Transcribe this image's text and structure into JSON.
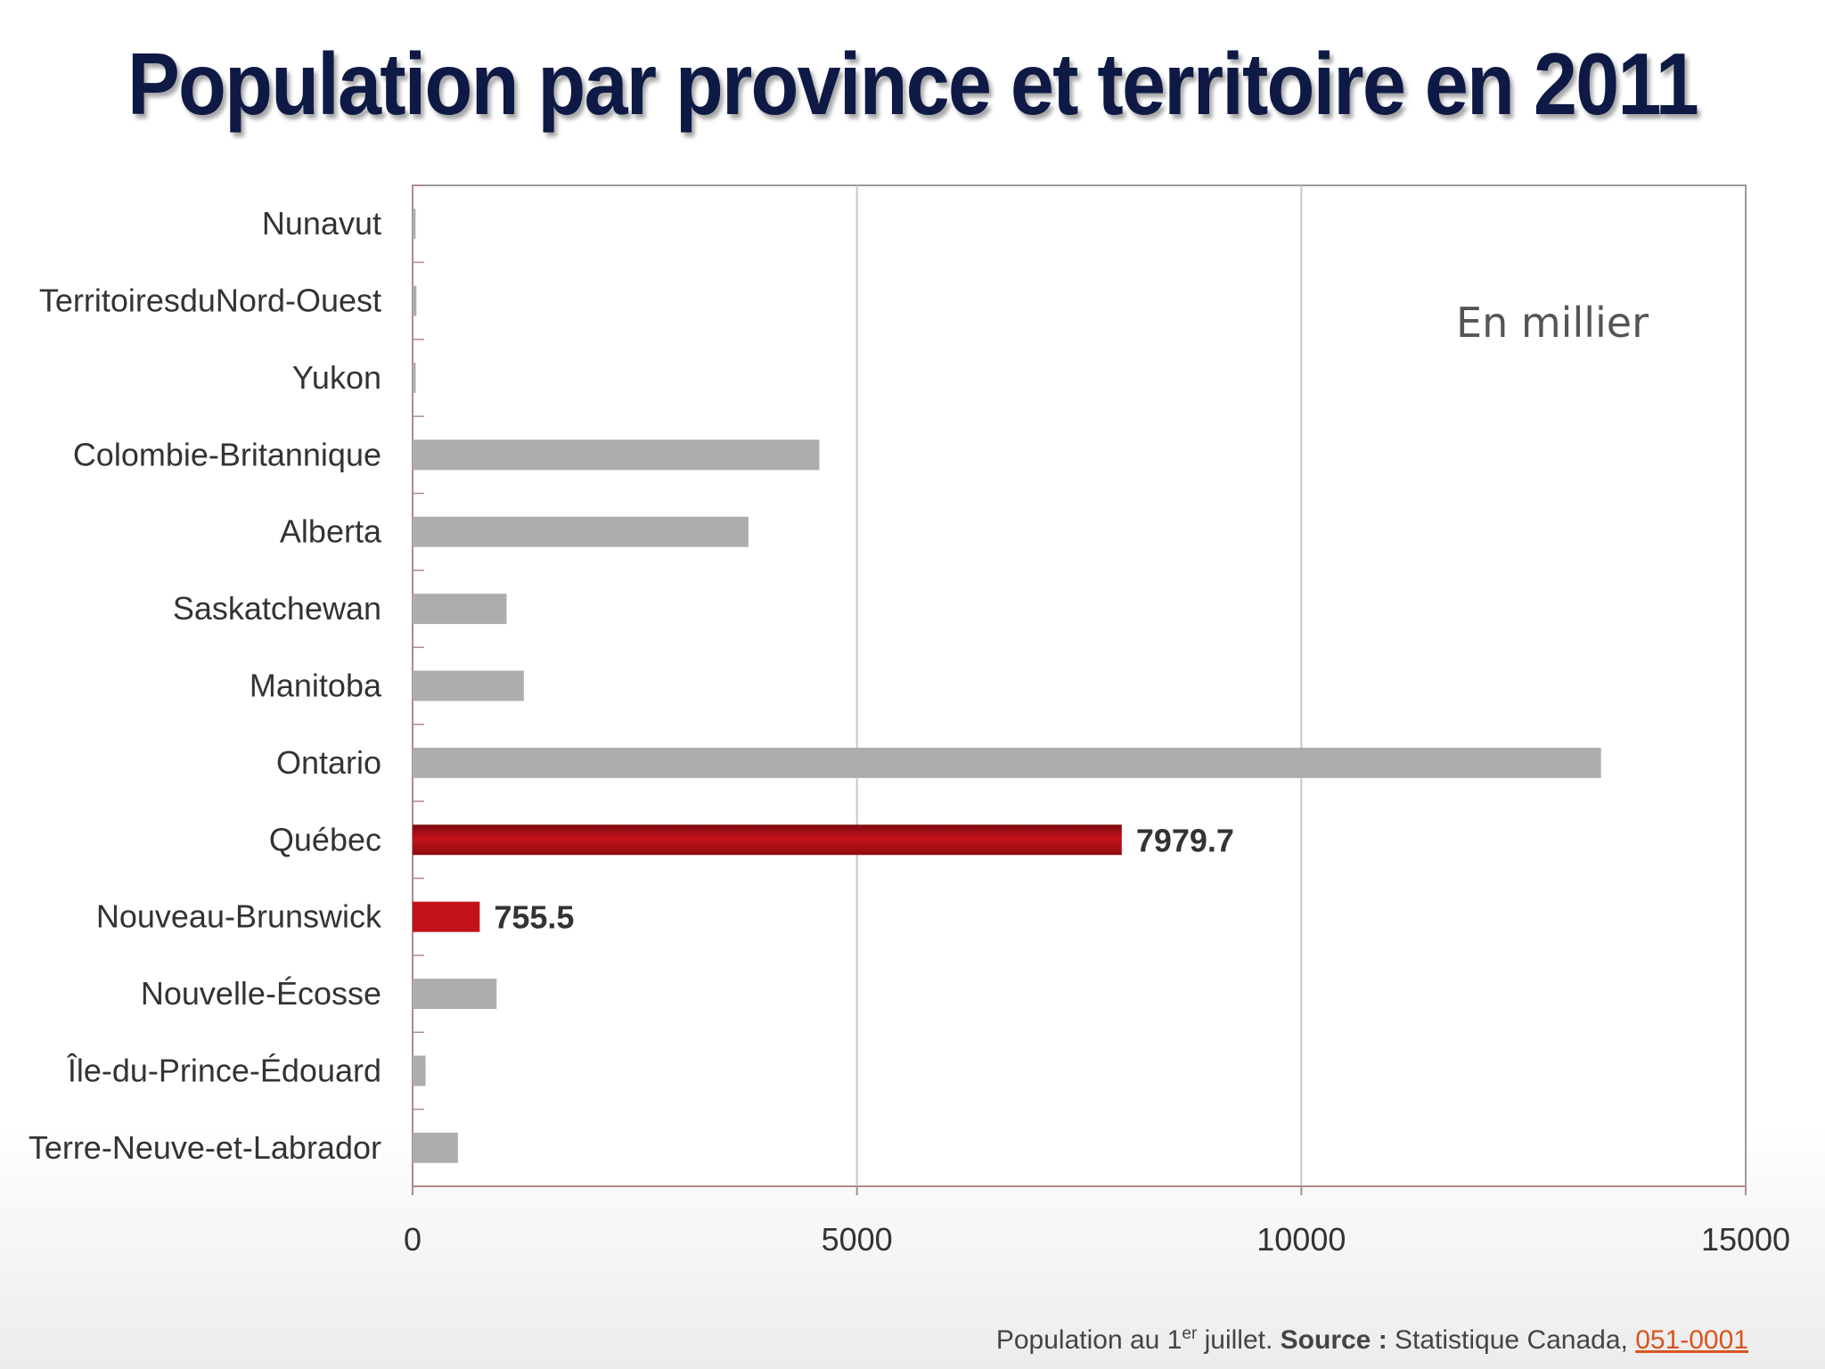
{
  "title": "Population par province et territoire en 2011",
  "unit_note": "En millier",
  "footer": {
    "prefix": "Population au 1",
    "superscript": "er",
    "middle": " juillet. ",
    "source_label": "Source :",
    "source_text": " Statistique Canada, ",
    "link_text": "051-0001"
  },
  "colors": {
    "default_bar": "#adadaf",
    "highlight_bar": "#c4121a",
    "title": "#0e1a45",
    "source_link": "#d9541e"
  },
  "chart_data": {
    "type": "bar",
    "orientation": "horizontal",
    "title": "Population par province et territoire en 2011",
    "xlabel": "",
    "ylabel": "",
    "xlim": [
      0,
      15000
    ],
    "xticks": [
      0,
      5000,
      10000,
      15000
    ],
    "grid": "vertical",
    "categories": [
      "Nunavut",
      "TerritoiresduNord-Ouest",
      "Yukon",
      "Colombie-Britannique",
      "Alberta",
      "Saskatchewan",
      "Manitoba",
      "Ontario",
      "Québec",
      "Nouveau-Brunswick",
      "Nouvelle-Écosse",
      "Île-du-Prince-Édouard",
      "Terre-Neuve-et-Labrador"
    ],
    "values": [
      33.4,
      43.7,
      34.7,
      4576.6,
      3779.4,
      1057.9,
      1251.7,
      13372.0,
      7979.7,
      755.5,
      945.4,
      145.9,
      510.6
    ],
    "highlighted": [
      "Québec",
      "Nouveau-Brunswick"
    ],
    "data_labels": {
      "Québec": "7979.7",
      "Nouveau-Brunswick": "755.5"
    }
  }
}
